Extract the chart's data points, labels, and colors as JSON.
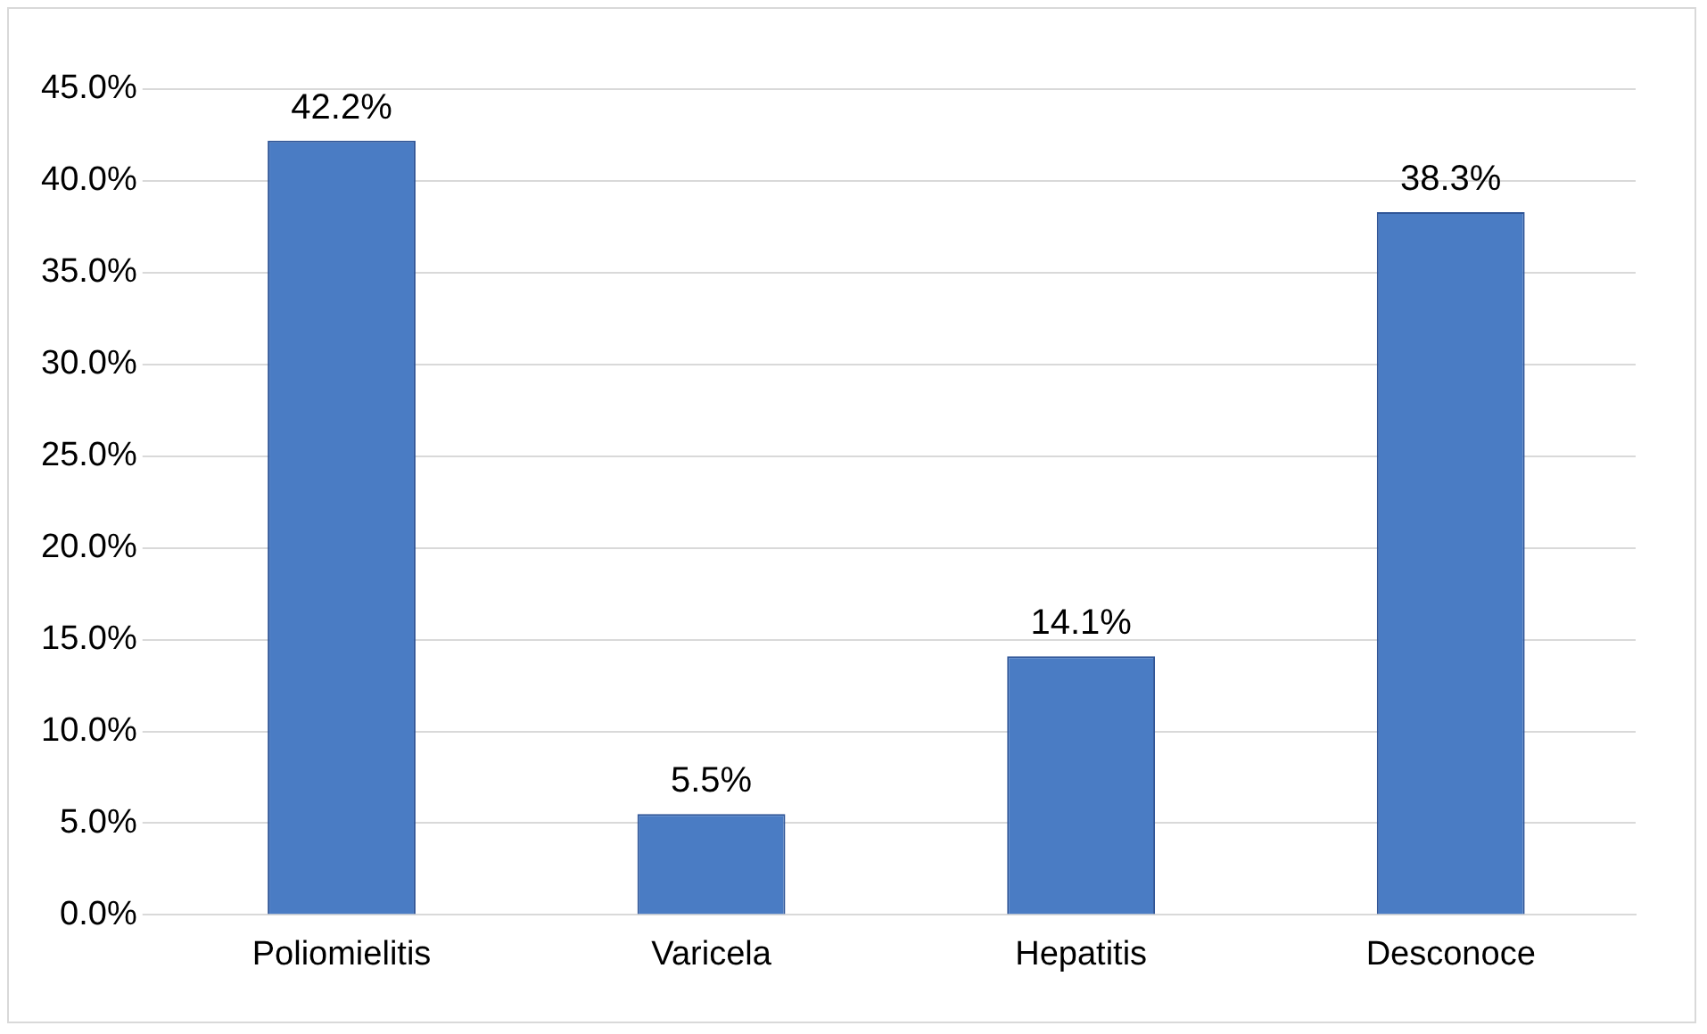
{
  "chart_data": {
    "type": "bar",
    "categories": [
      "Poliomielitis",
      "Varicela",
      "Hepatitis",
      "Desconoce"
    ],
    "values": [
      42.2,
      5.5,
      14.1,
      38.3
    ],
    "value_labels": [
      "42.2%",
      "5.5%",
      "14.1%",
      "38.3%"
    ],
    "color": "#4a7cc4",
    "ylim": [
      0,
      45
    ],
    "yticks": [
      {
        "value": 0,
        "label": "0.0%"
      },
      {
        "value": 5,
        "label": "5.0%"
      },
      {
        "value": 10,
        "label": "10.0%"
      },
      {
        "value": 15,
        "label": "15.0%"
      },
      {
        "value": 20,
        "label": "20.0%"
      },
      {
        "value": 25,
        "label": "25.0%"
      },
      {
        "value": 30,
        "label": "30.0%"
      },
      {
        "value": 35,
        "label": "35.0%"
      },
      {
        "value": 40,
        "label": "40.0%"
      },
      {
        "value": 45,
        "label": "45.0%"
      }
    ],
    "grid": "y",
    "legend": false
  }
}
